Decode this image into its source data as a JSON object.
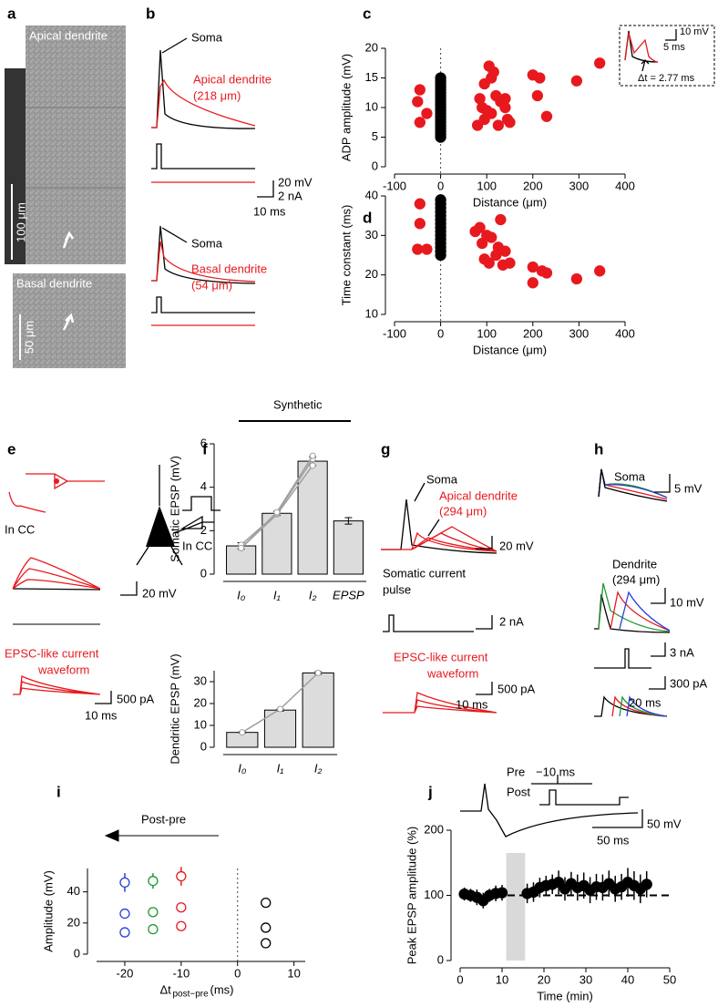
{
  "panel_labels": [
    "a",
    "b",
    "c",
    "d",
    "e",
    "f",
    "g",
    "h",
    "i",
    "j"
  ],
  "panels": {
    "a": [
      "Apical dendrite",
      "100 μm",
      "Basal dendrite",
      "50 μm"
    ],
    "b": [
      "Soma",
      "Apical dendrite",
      "(218 μm)",
      "20 mV",
      "2 nA",
      "10 ms",
      "Soma",
      "Basal dendrite",
      "(54 μm)"
    ],
    "e": [
      "In CC",
      "In CC",
      "20 mV",
      "EPSC-like current",
      "waveform",
      "500 pA",
      "10 ms"
    ],
    "g": [
      "Soma",
      "Apical dendrite",
      "(294 μm)",
      "20 mV",
      "Somatic current",
      "pulse",
      "2 nA",
      "EPSC-like current",
      "waveform",
      "500 pA",
      "10 ms"
    ],
    "h": [
      "Soma",
      "5 mV",
      "Dendrite",
      "(294 μm)",
      "10 mV",
      "3 nA",
      "300 pA",
      "20 ms"
    ]
  },
  "chart_data": [
    {
      "type": "scatter",
      "xlabel": "Distance (μm)",
      "ylabel": "ADP amplitude (mV)",
      "xlim": [
        -100,
        400
      ],
      "xticks": [
        -100,
        0,
        100,
        200,
        300,
        400
      ],
      "ylim": [
        0,
        20
      ],
      "yticks": [
        0,
        5,
        10,
        15,
        20
      ],
      "vline": 0,
      "annotations": [
        "10 mV",
        "5 ms",
        "Δt = 2.77 ms"
      ],
      "series": [
        {
          "color": "#e8191e",
          "x": [
            -45,
            -50,
            -30,
            -45,
            85,
            95,
            105,
            110,
            120,
            90,
            80,
            95,
            110,
            130,
            140,
            145,
            125,
            150,
            140,
            115,
            200,
            215,
            230,
            210,
            295,
            345,
            100
          ],
          "values": [
            13,
            11,
            9,
            7.5,
            11.5,
            14,
            17,
            15,
            12,
            10,
            7,
            8,
            9,
            11,
            10,
            8,
            7,
            7.5,
            11.5,
            16,
            15.5,
            15,
            8.5,
            12,
            14.5,
            17.5,
            9.5
          ]
        },
        {
          "color": "#000000",
          "x": [
            0,
            0,
            0,
            0,
            0,
            0,
            0,
            0,
            0,
            0,
            0,
            0,
            0,
            0,
            0,
            0,
            0,
            0,
            0,
            0,
            0
          ],
          "values": [
            5,
            5.5,
            6,
            6.5,
            7,
            7.5,
            8,
            8.5,
            9,
            9.5,
            10,
            10.5,
            11,
            11.5,
            12,
            12.5,
            13,
            13.5,
            14,
            14.5,
            15
          ]
        }
      ]
    },
    {
      "type": "scatter",
      "xlabel": "Distance (μm)",
      "ylabel": "Time constant (ms)",
      "xlim": [
        -100,
        400
      ],
      "xticks": [
        -100,
        0,
        100,
        200,
        300,
        400
      ],
      "ylim": [
        10,
        40
      ],
      "yticks": [
        10,
        20,
        30,
        40
      ],
      "vline": 0,
      "series": [
        {
          "color": "#e8191e",
          "x": [
            -45,
            -45,
            -50,
            -30,
            75,
            85,
            90,
            100,
            110,
            120,
            95,
            105,
            130,
            140,
            125,
            135,
            150,
            200,
            220,
            200,
            230,
            295,
            345
          ],
          "values": [
            38,
            33,
            26.5,
            26.5,
            31,
            32,
            28,
            30,
            29.5,
            25,
            24,
            23,
            34,
            26,
            27,
            22.5,
            23,
            22,
            21,
            18,
            20.5,
            19,
            21
          ]
        },
        {
          "color": "#000000",
          "x": [
            0,
            0,
            0,
            0,
            0,
            0,
            0,
            0,
            0,
            0,
            0,
            0,
            0,
            0,
            0
          ],
          "values": [
            25,
            26,
            27,
            28,
            29,
            30,
            31,
            32,
            33,
            34,
            35,
            36,
            37,
            38,
            39
          ]
        }
      ]
    },
    {
      "type": "bar",
      "ylabel": "Somatic EPSP (mV)",
      "categories": [
        "I₀",
        "I₁",
        "I₂",
        "EPSP"
      ],
      "values": [
        1.3,
        2.8,
        5.2,
        2.45
      ],
      "errors": [
        0.15,
        0.1,
        0.2,
        0.15
      ],
      "color": "#dcdcdc",
      "ylim": [
        0,
        6
      ],
      "yticks": [
        0,
        2,
        4,
        6
      ],
      "annotations": [
        "Synthetic"
      ],
      "series": [
        {
          "color": "#a0a0a0",
          "values": [
            1.2,
            2.75,
            5.0,
            null
          ]
        },
        {
          "color": "#a0a0a0",
          "values": [
            1.35,
            2.8,
            5.3,
            null
          ]
        },
        {
          "color": "#a0a0a0",
          "values": [
            1.2,
            2.85,
            5.45,
            null
          ]
        }
      ]
    },
    {
      "type": "bar",
      "ylabel": "Dendritic EPSP (mV)",
      "categories": [
        "I₀",
        "I₁",
        "I₂"
      ],
      "values": [
        6.8,
        17,
        34
      ],
      "errors": [
        0.3,
        0.5,
        0.6
      ],
      "color": "#dcdcdc",
      "ylim": [
        0,
        35
      ],
      "yticks": [
        0,
        10,
        20,
        30
      ],
      "series": [
        {
          "color": "#a0a0a0",
          "values": [
            6.8,
            17.5,
            34
          ]
        }
      ]
    },
    {
      "type": "scatter",
      "ylabel": "Amplitude (mV)",
      "xlabel": "Δt",
      "xlabel_subscript": "post−pre",
      "xlabel_unit": "(ms)",
      "xlim": [
        -25,
        12
      ],
      "xticks": [
        -20,
        -10,
        0,
        10
      ],
      "ylim": [
        0,
        55
      ],
      "yticks": [
        0,
        20,
        40
      ],
      "vline": 0,
      "marker": "open",
      "annotations": [
        "Post-pre"
      ],
      "series": [
        {
          "color": "#2b3fd6",
          "x": [
            -20,
            -20,
            -20
          ],
          "values": [
            46,
            26,
            14
          ],
          "errors": [
            6,
            2,
            2
          ]
        },
        {
          "color": "#1f9a2f",
          "x": [
            -15,
            -15,
            -15
          ],
          "values": [
            47,
            27,
            16
          ],
          "errors": [
            5,
            2,
            2
          ]
        },
        {
          "color": "#e8191e",
          "x": [
            -10,
            -10,
            -10
          ],
          "values": [
            50,
            30,
            18
          ],
          "errors": [
            6,
            3,
            2
          ]
        },
        {
          "color": "#000000",
          "x": [
            5,
            5,
            5
          ],
          "values": [
            33,
            17,
            7
          ],
          "errors": [
            2,
            2,
            2
          ]
        }
      ]
    },
    {
      "type": "scatter",
      "ylabel": "Peak EPSP amplitude (%)",
      "xlabel": "Time (min)",
      "xlim": [
        0,
        50
      ],
      "xticks": [
        0,
        10,
        20,
        30,
        40,
        50
      ],
      "ylim": [
        0,
        200
      ],
      "yticks": [
        0,
        100,
        200
      ],
      "hline": 100,
      "shade": [
        11,
        15.5
      ],
      "annotations": [
        "Pre",
        "Post",
        "−10 ms",
        "50 mV",
        "50 ms"
      ],
      "series": [
        {
          "color": "#000000",
          "x": [
            1,
            2.5,
            4,
            5.5,
            7,
            8.5,
            10,
            16,
            17.5,
            19,
            20.5,
            22,
            23.5,
            25,
            26.5,
            28,
            29.5,
            31,
            32.5,
            34,
            35.5,
            37,
            38.5,
            40,
            41.5,
            43,
            44.5
          ],
          "values": [
            102,
            100,
            97,
            92,
            100,
            103,
            104,
            103,
            105,
            112,
            115,
            117,
            120,
            110,
            118,
            112,
            115,
            108,
            113,
            112,
            118,
            110,
            113,
            120,
            115,
            110,
            117
          ],
          "errors": [
            10,
            10,
            12,
            12,
            10,
            12,
            12,
            15,
            15,
            15,
            15,
            15,
            18,
            18,
            18,
            20,
            20,
            20,
            20,
            20,
            20,
            20,
            20,
            22,
            22,
            22,
            20
          ]
        }
      ]
    }
  ]
}
